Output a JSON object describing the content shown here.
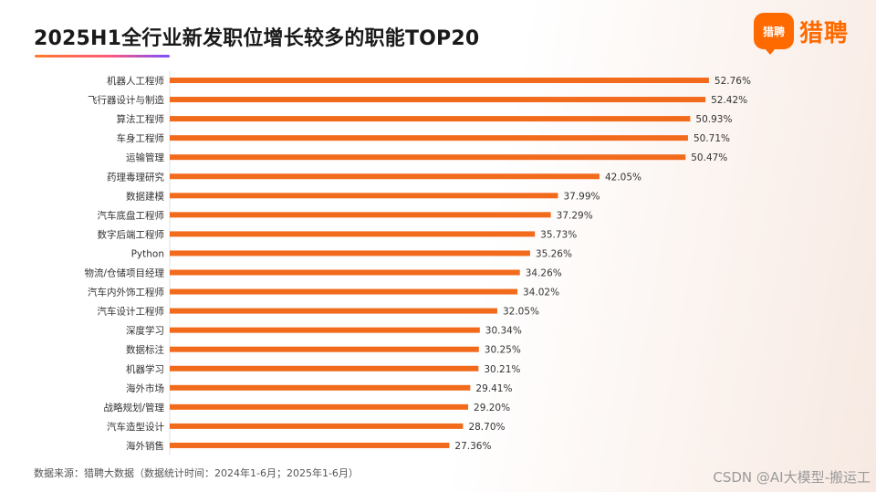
{
  "header": {
    "title": "2025H1全行业新发职位增长较多的职能TOP20",
    "logo_badge": "猎聘",
    "logo_text": "猎聘"
  },
  "chart_data": {
    "type": "bar",
    "orientation": "horizontal",
    "title": "2025H1全行业新发职位增长较多的职能TOP20",
    "xlabel": "",
    "ylabel": "",
    "xlim": [
      0,
      60
    ],
    "value_suffix": "%",
    "bar_color": "#f26b1d",
    "categories": [
      "机器人工程师",
      "飞行器设计与制造",
      "算法工程师",
      "车身工程师",
      "运输管理",
      "药理毒理研究",
      "数据建模",
      "汽车底盘工程师",
      "数字后端工程师",
      "Python",
      "物流/仓储项目经理",
      "汽车内外饰工程师",
      "汽车设计工程师",
      "深度学习",
      "数据标注",
      "机器学习",
      "海外市场",
      "战略规划/管理",
      "汽车造型设计",
      "海外销售"
    ],
    "values": [
      52.76,
      52.42,
      50.93,
      50.71,
      50.47,
      42.05,
      37.99,
      37.29,
      35.73,
      35.26,
      34.26,
      34.02,
      32.05,
      30.34,
      30.25,
      30.21,
      29.41,
      29.2,
      28.7,
      27.36
    ]
  },
  "footer": {
    "source": "数据来源：猎聘大数据（数据统计时间：2024年1-6月；2025年1-6月）",
    "watermark": "CSDN @AI大模型-搬运工"
  }
}
